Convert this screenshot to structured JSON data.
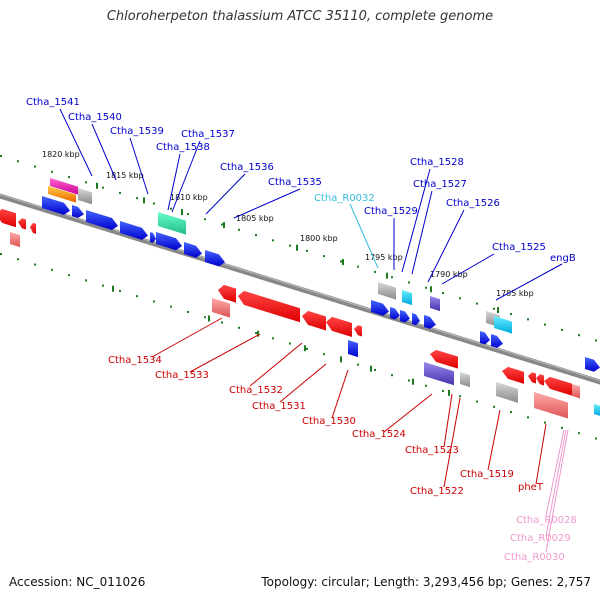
{
  "title": "Chloroherpeton thalassium ATCC 35110, complete genome",
  "footer": {
    "accession": "Accession: NC_011026",
    "summary": "Topology: circular; Length: 3,293,456 bp; Genes: 2,757"
  },
  "colors": {
    "backbone": "#888888",
    "tick": "#1f7a1f",
    "forward_gene": "#0000ee",
    "reverse_gene": "#ff0000",
    "forward_label": "#0000cc",
    "reverse_label": "#cc0000",
    "rna_label": "#33bbdd",
    "rrna_label": "#ee99cc",
    "scale_label": "#111111"
  },
  "scale_labels": [
    "1820 kbp",
    "1815 kbp",
    "1810 kbp",
    "1805 kbp",
    "1800 kbp",
    "1795 kbp",
    "1790 kbp",
    "1785 kbp"
  ],
  "labels": {
    "forward": [
      "Ctha_1541",
      "Ctha_1540",
      "Ctha_1539",
      "Ctha_1537",
      "Ctha_1538",
      "Ctha_1536",
      "Ctha_1535",
      "Ctha_1529",
      "Ctha_1528",
      "Ctha_1527",
      "Ctha_1526",
      "Ctha_1525",
      "engB"
    ],
    "reverse": [
      "Ctha_1534",
      "Ctha_1533",
      "Ctha_1532",
      "Ctha_1531",
      "Ctha_1530",
      "Ctha_1524",
      "Ctha_1523",
      "Ctha_1522",
      "Ctha_1519",
      "pheT"
    ],
    "rna": [
      "Ctha_R0032"
    ],
    "rrna": [
      "Ctha_R0028",
      "Ctha_R0029",
      "Ctha_R0030"
    ]
  }
}
